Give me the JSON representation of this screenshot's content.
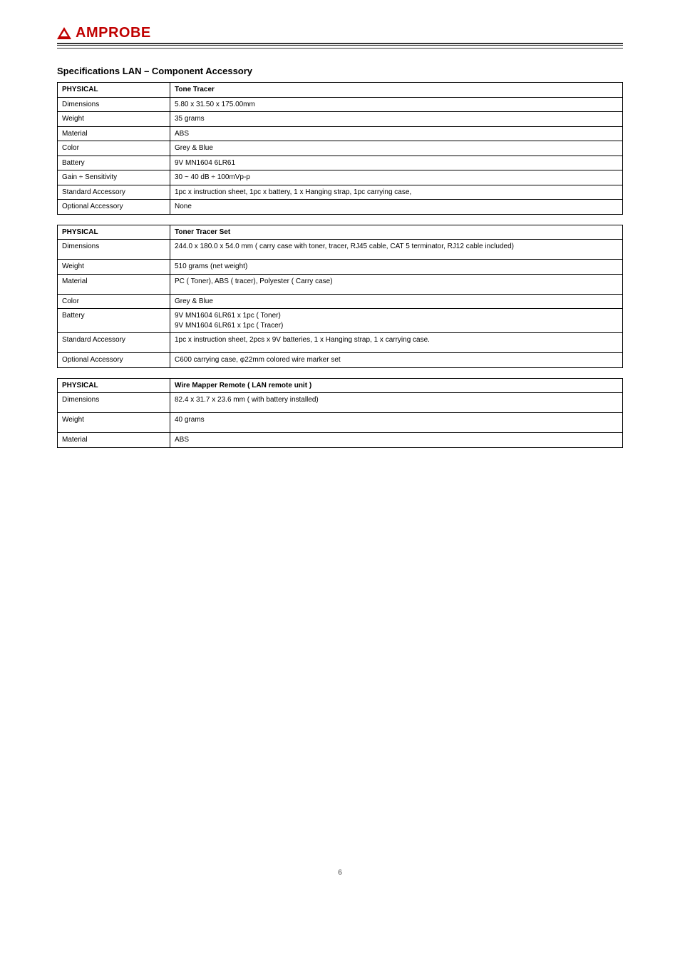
{
  "logo_text": "AMPROBE",
  "section_title": "Specifications LAN – Component Accessory",
  "table1": {
    "header_col1": "PHYSICAL",
    "header_col2": "Tone Tracer",
    "rows": [
      {
        "label": "Dimensions",
        "value": "5.80 x 31.50 x 175.00mm"
      },
      {
        "label": "Weight",
        "value": "35 grams"
      },
      {
        "label": "Material",
        "value": "ABS"
      },
      {
        "label": "Color",
        "value": "Grey & Blue"
      },
      {
        "label": "Battery",
        "value": "9V MN1604 6LR61"
      },
      {
        "label": "Gain ÷ Sensitivity",
        "value": "30 ~ 40 dB ÷ 100mVp-p"
      },
      {
        "label": "Standard Accessory",
        "value": "1pc x instruction sheet, 1pc x battery, 1 x Hanging strap, 1pc carrying case,"
      },
      {
        "label": "Optional Accessory",
        "value": "None"
      }
    ]
  },
  "table2": {
    "header_col1": "PHYSICAL",
    "header_col2": "Toner Tracer Set",
    "rows": [
      {
        "label": "Dimensions",
        "value": "244.0 x 180.0 x 54.0 mm ( carry case with toner, tracer, RJ45 cable, CAT 5 terminator, RJ12 cable included)",
        "tall": true
      },
      {
        "label": "Weight",
        "value": "510 grams (net weight)"
      },
      {
        "label": "Material",
        "value": "PC ( Toner), ABS ( tracer), Polyester ( Carry case)",
        "tall": true
      },
      {
        "label": "Color",
        "value": "Grey & Blue"
      },
      {
        "label": "Battery",
        "value": "9V MN1604 6LR61 x 1pc ( Toner)\n9V MN1604 6LR61 x 1pc ( Tracer)",
        "tall": true
      },
      {
        "label": "Standard Accessory",
        "value": "1pc x instruction sheet, 2pcs x 9V batteries, 1 x Hanging strap, 1 x carrying case.",
        "tall": true
      },
      {
        "label": "Optional Accessory",
        "value": "C600 carrying case, φ22mm colored wire marker set"
      }
    ]
  },
  "table3": {
    "header_col1": "PHYSICAL",
    "header_col2": "Wire Mapper Remote ( LAN remote unit )",
    "rows": [
      {
        "label": "Dimensions",
        "value": "82.4 x 31.7 x 23.6 mm ( with battery installed)",
        "tall": true
      },
      {
        "label": "Weight",
        "value": "40 grams",
        "tall": true
      },
      {
        "label": "Material",
        "value": "ABS"
      }
    ]
  },
  "page_number": "6"
}
